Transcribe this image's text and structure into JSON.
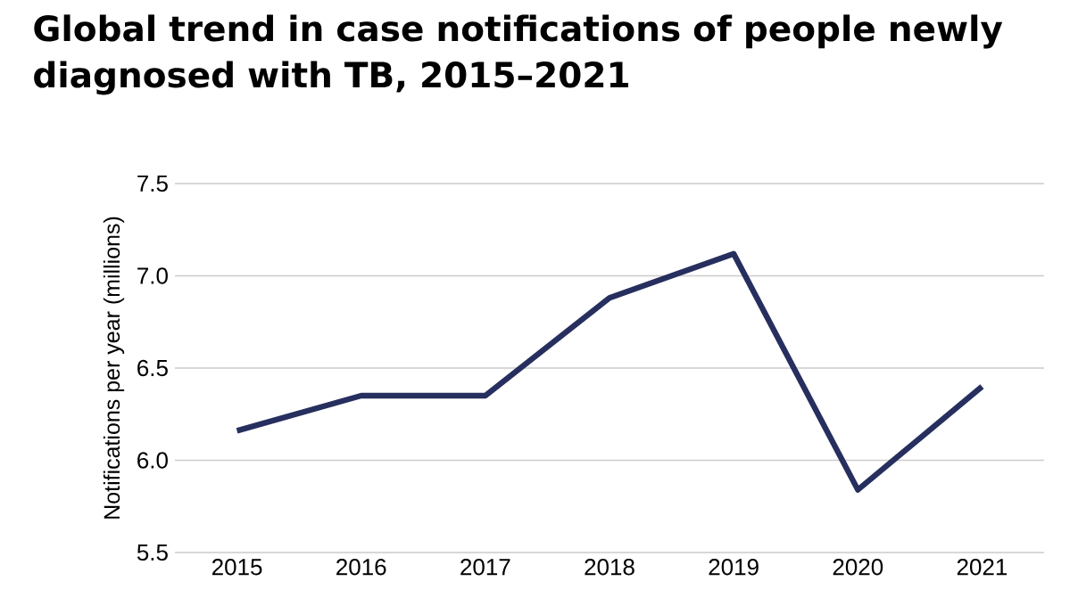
{
  "chart_data": {
    "type": "line",
    "title": "Global trend in case notifications of people newly diagnosed with TB, 2015–2021",
    "ylabel": "Notifications per year (millions)",
    "categories": [
      "2015",
      "2016",
      "2017",
      "2018",
      "2019",
      "2020",
      "2021"
    ],
    "series": [
      {
        "color": "#262f5e",
        "values": [
          6.16,
          6.35,
          6.35,
          6.88,
          7.12,
          5.84,
          6.4
        ]
      }
    ],
    "ylim": [
      5.5,
      7.5
    ],
    "yticks": [
      {
        "value": 5.5,
        "label": "5.5"
      },
      {
        "value": 6.0,
        "label": "6.0"
      },
      {
        "value": 6.5,
        "label": "6.5"
      },
      {
        "value": 7.0,
        "label": "7.0"
      },
      {
        "value": 7.5,
        "label": "7.5"
      }
    ],
    "grid": "y",
    "marker": "none",
    "line_style": "solid"
  }
}
